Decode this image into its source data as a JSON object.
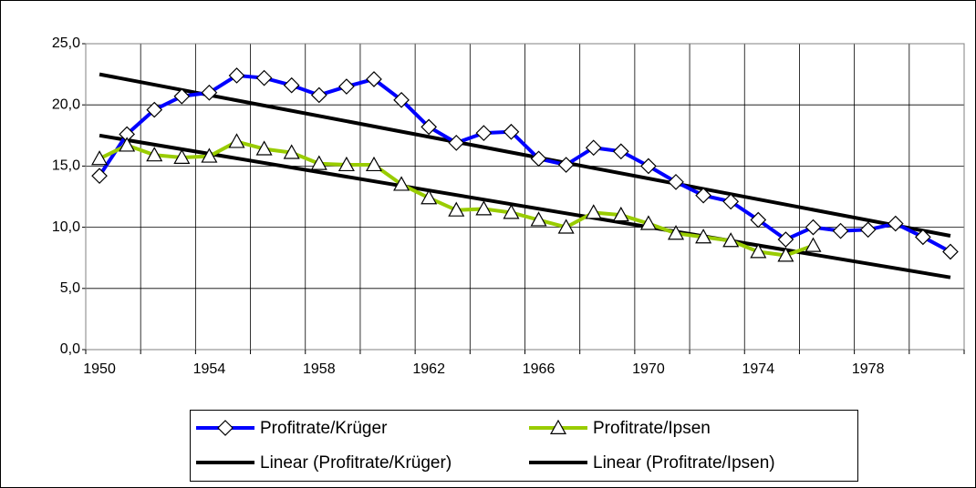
{
  "chart_data": {
    "type": "line",
    "categories": [
      "1950",
      null,
      null,
      null,
      "1954",
      null,
      null,
      null,
      "1958",
      null,
      null,
      null,
      "1962",
      null,
      null,
      null,
      "1966",
      null,
      null,
      null,
      "1970",
      null,
      null,
      null,
      "1974",
      null,
      null,
      null,
      "1978",
      null,
      null,
      null
    ],
    "series": [
      {
        "name": "Profitrate/Krüger",
        "color": "#0000ff",
        "marker": "diamond",
        "values": [
          14.2,
          17.6,
          19.6,
          20.7,
          21.0,
          22.4,
          22.2,
          21.6,
          20.8,
          21.5,
          22.1,
          20.4,
          18.2,
          16.9,
          17.7,
          17.8,
          15.6,
          15.1,
          16.5,
          16.2,
          15.0,
          13.7,
          12.6,
          12.1,
          10.6,
          9.0,
          10.0,
          9.7,
          9.8,
          10.3,
          9.2,
          8.0
        ]
      },
      {
        "name": "Profitrate/Ipsen",
        "color": "#99cc00",
        "marker": "triangle",
        "values": [
          15.6,
          16.7,
          15.9,
          15.7,
          15.8,
          17.0,
          16.4,
          16.1,
          15.2,
          15.1,
          15.1,
          13.5,
          12.4,
          11.4,
          11.5,
          11.2,
          10.6,
          10.0,
          11.2,
          11.0,
          10.3,
          9.5,
          9.2,
          8.9,
          8.0,
          7.7,
          8.5,
          null,
          null,
          null,
          null,
          null
        ]
      }
    ],
    "trendlines": [
      {
        "name": "Linear (Profitrate/Krüger)",
        "color": "#000000",
        "values": [
          22.5,
          9.3
        ]
      },
      {
        "name": "Linear (Profitrate/Ipsen)",
        "color": "#000000",
        "values": [
          17.5,
          5.9
        ]
      }
    ],
    "ylim": [
      0,
      25
    ],
    "yticks": [
      {
        "value": 0,
        "label": "0,0"
      },
      {
        "value": 5,
        "label": "5,0"
      },
      {
        "value": 10,
        "label": "10,0"
      },
      {
        "value": 15,
        "label": "15,0"
      },
      {
        "value": 20,
        "label": "20,0"
      },
      {
        "value": 25,
        "label": "25,0"
      }
    ],
    "grid": true,
    "legend": "bottom"
  }
}
